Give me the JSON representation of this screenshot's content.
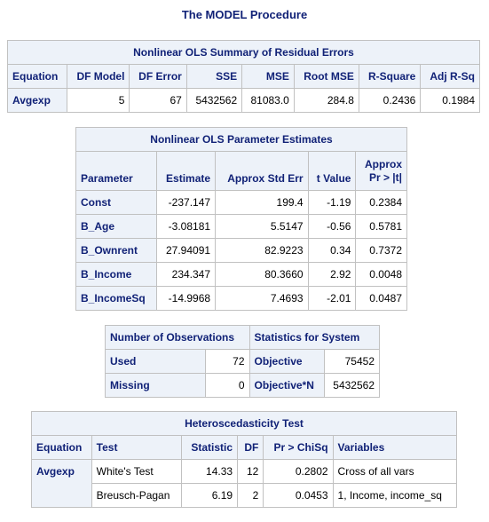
{
  "procedure_title": "The MODEL Procedure",
  "summary": {
    "caption": "Nonlinear OLS Summary of Residual Errors",
    "columns": [
      "Equation",
      "DF Model",
      "DF Error",
      "SSE",
      "MSE",
      "Root MSE",
      "R-Square",
      "Adj R-Sq"
    ],
    "row": [
      "Avgexp",
      "5",
      "67",
      "5432562",
      "81083.0",
      "284.8",
      "0.2436",
      "0.1984"
    ]
  },
  "estimates": {
    "caption": "Nonlinear OLS Parameter Estimates",
    "columns": [
      "Parameter",
      "Estimate",
      "Approx Std Err",
      "t Value",
      "Approx",
      "Pr > |t|"
    ],
    "rows": [
      [
        "Const",
        "-237.147",
        "199.4",
        "-1.19",
        "0.2384"
      ],
      [
        "B_Age",
        "-3.08181",
        "5.5147",
        "-0.56",
        "0.5781"
      ],
      [
        "B_Ownrent",
        "27.94091",
        "82.9223",
        "0.34",
        "0.7372"
      ],
      [
        "B_Income",
        "234.347",
        "80.3660",
        "2.92",
        "0.0048"
      ],
      [
        "B_IncomeSq",
        "-14.9968",
        "7.4693",
        "-2.01",
        "0.0487"
      ]
    ]
  },
  "observations": {
    "header_left": "Number of Observations",
    "header_right": "Statistics for System",
    "rows": [
      [
        "Used",
        "72",
        "Objective",
        "75452"
      ],
      [
        "Missing",
        "0",
        "Objective*N",
        "5432562"
      ]
    ]
  },
  "hetero": {
    "caption": "Heteroscedasticity Test",
    "columns": [
      "Equation",
      "Test",
      "Statistic",
      "DF",
      "Pr > ChiSq",
      "Variables"
    ],
    "rows": [
      [
        "Avgexp",
        "White's Test",
        "14.33",
        "12",
        "0.2802",
        "Cross of all vars"
      ],
      [
        "",
        "Breusch-Pagan",
        "6.19",
        "2",
        "0.0453",
        "1, Income, income_sq"
      ]
    ]
  }
}
